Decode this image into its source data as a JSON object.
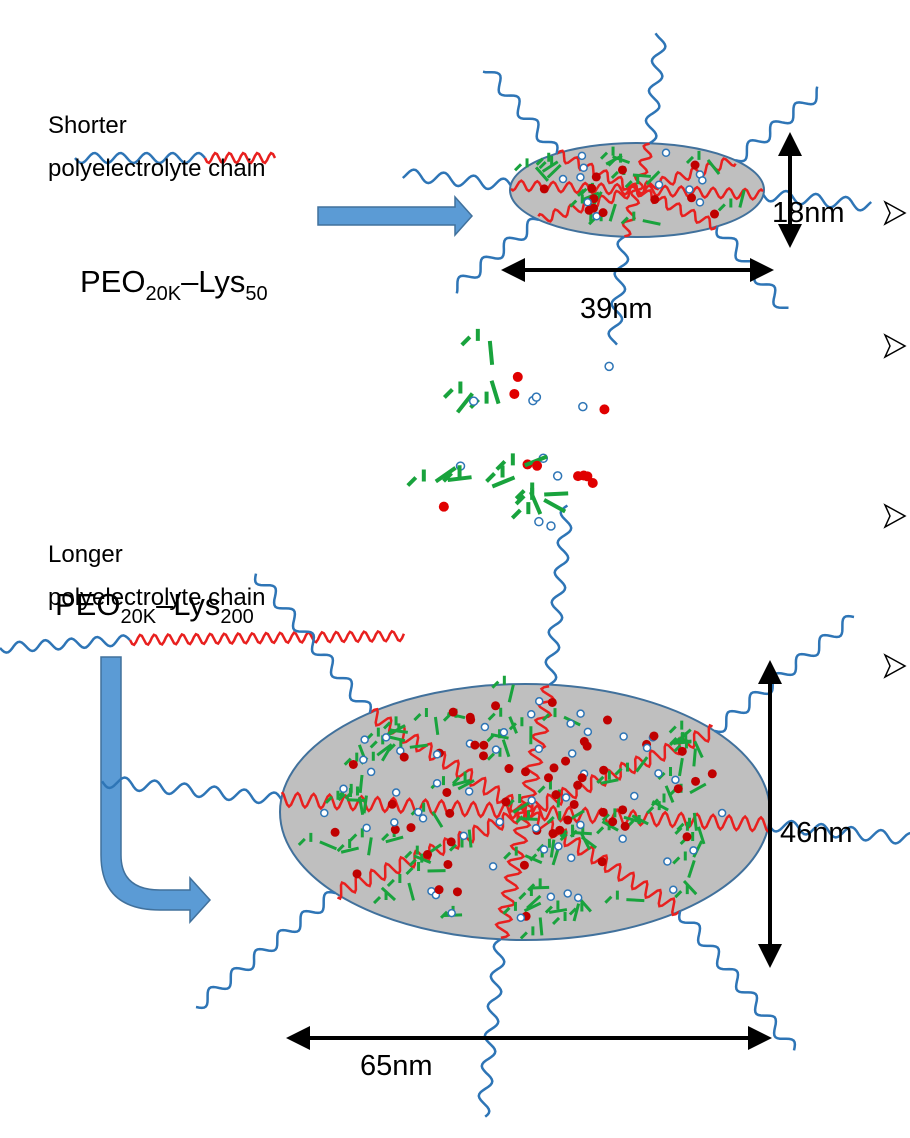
{
  "shorter": {
    "line1": "Shorter",
    "line2": "polyelectrolyte chain",
    "formula": {
      "base": "PEO",
      "sub1": "20K",
      "mid": "–Lys",
      "sub2": "50"
    },
    "height": "18nm",
    "width": "39nm"
  },
  "longer": {
    "line1": "Longer",
    "line2": "polyelectrolyte chain",
    "formula": {
      "base": "PEO",
      "sub1": "20K",
      "mid": "–Lys",
      "sub2": "200"
    },
    "height": "46nm",
    "width": "65nm"
  }
}
